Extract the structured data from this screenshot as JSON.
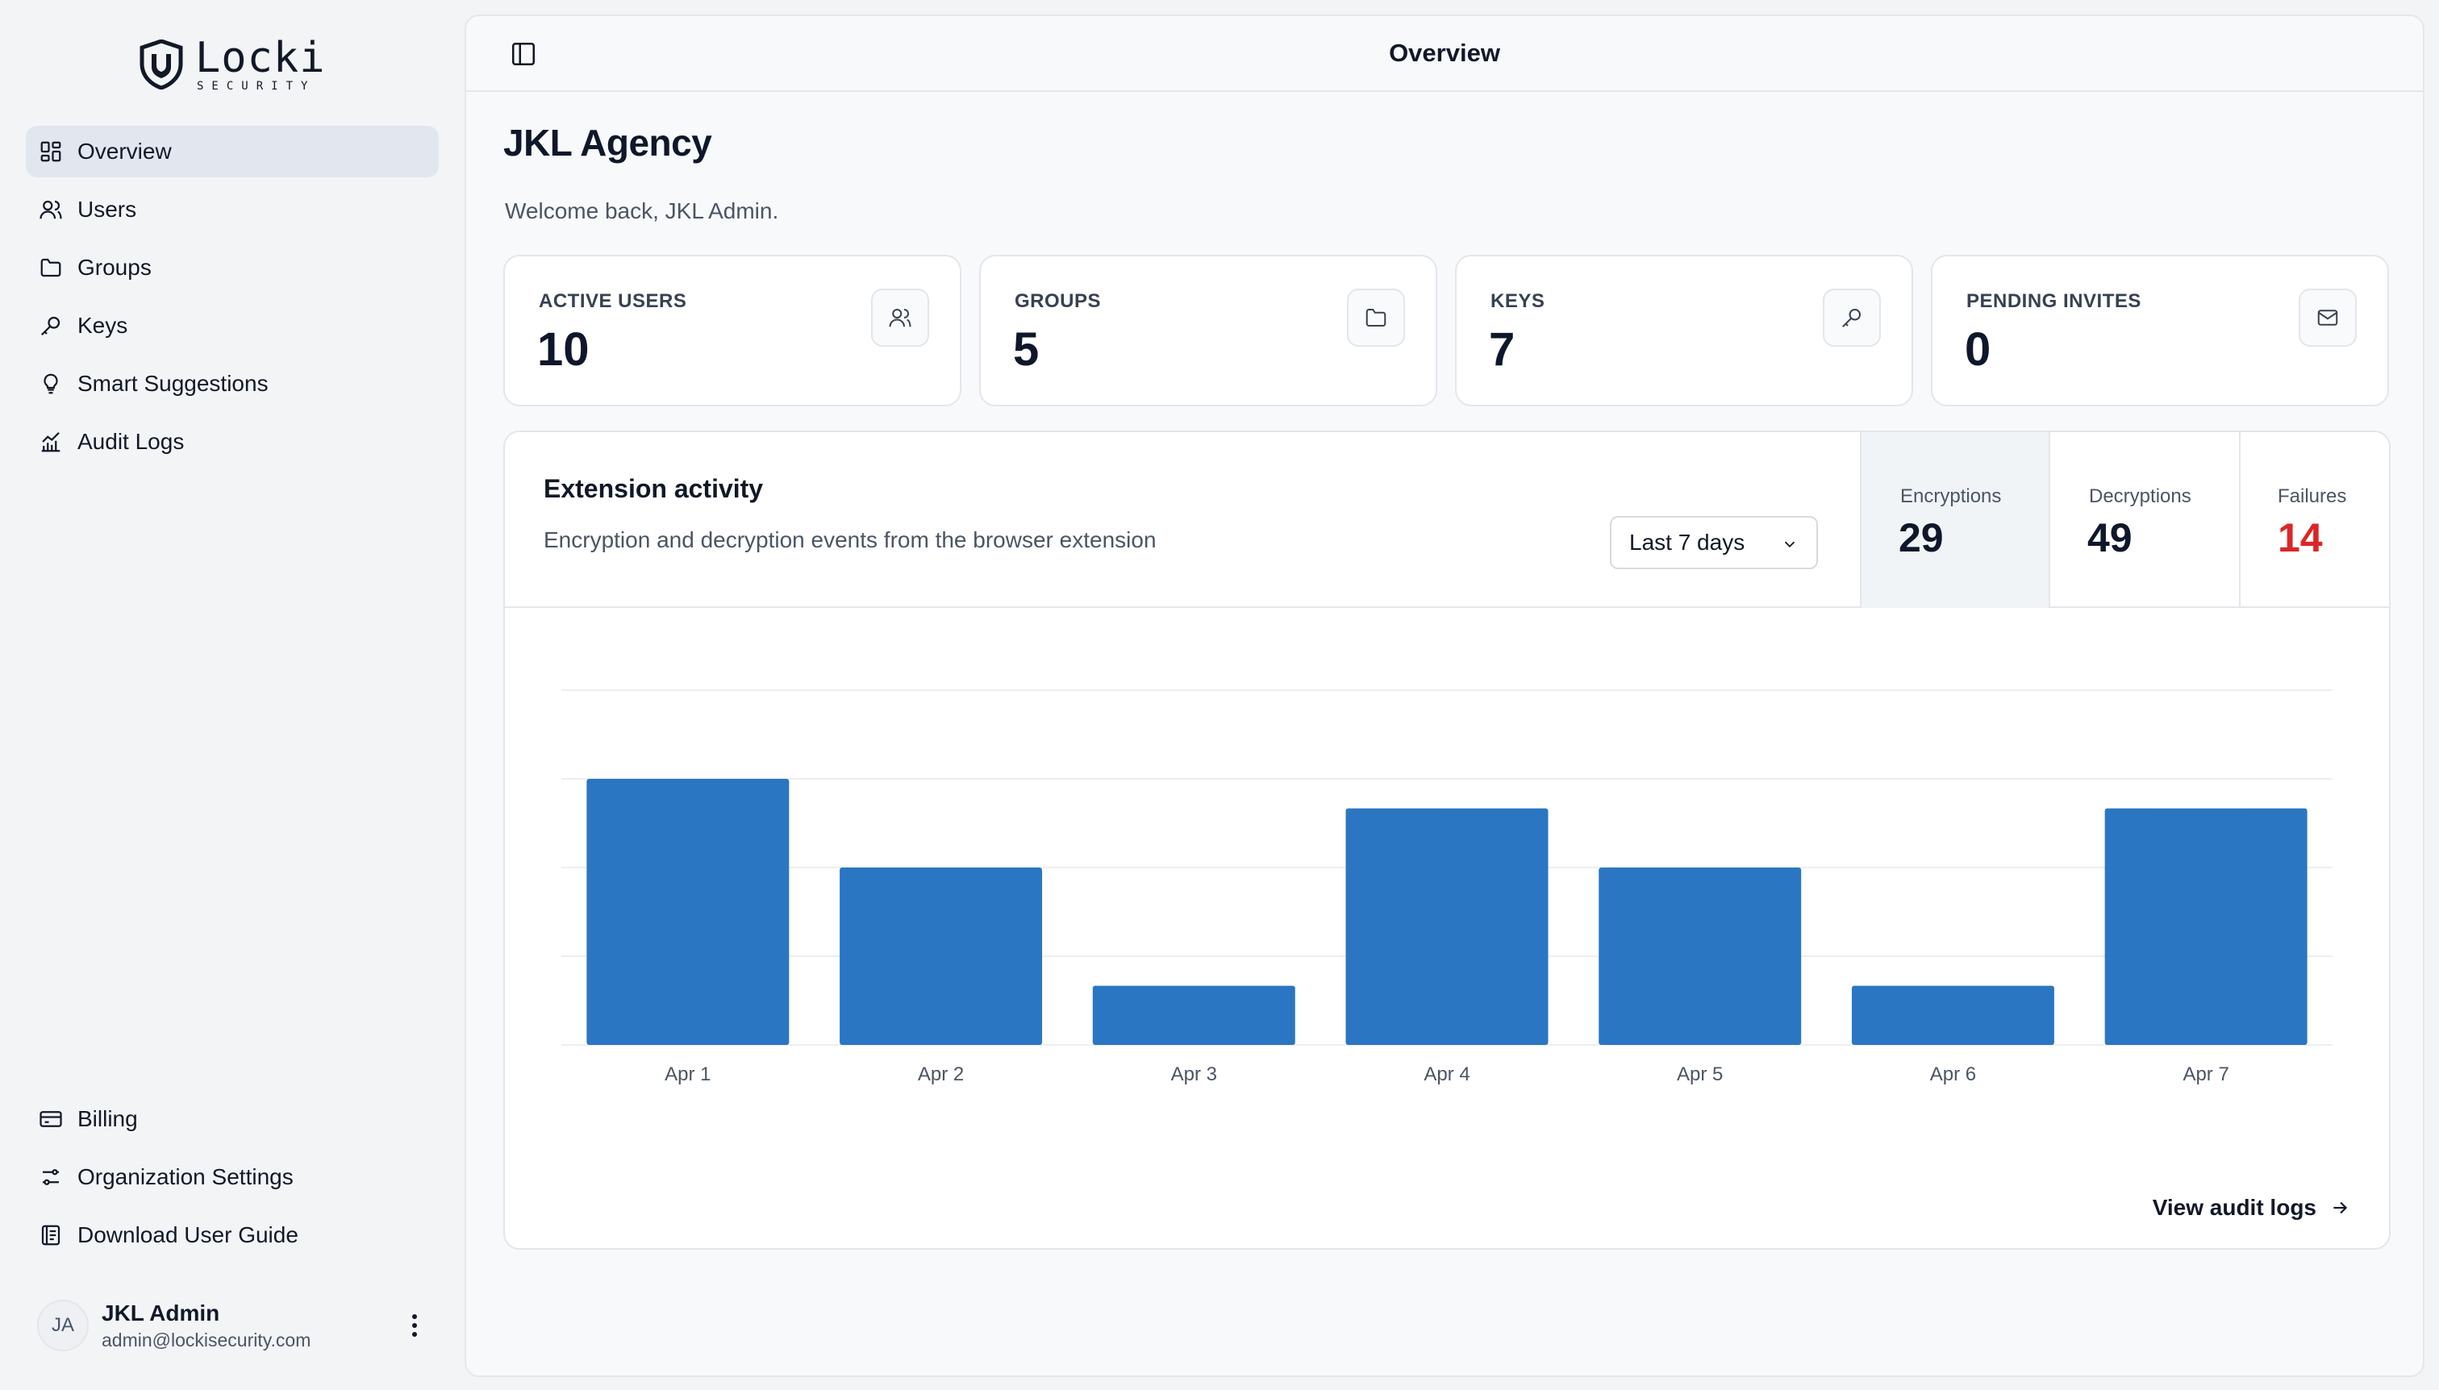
{
  "brand": {
    "name": "Locki",
    "tagline": "SECURITY"
  },
  "sidebar": {
    "items": [
      {
        "label": "Overview",
        "icon": "dashboard-icon",
        "active": true
      },
      {
        "label": "Users",
        "icon": "users-icon"
      },
      {
        "label": "Groups",
        "icon": "folder-icon"
      },
      {
        "label": "Keys",
        "icon": "key-icon"
      },
      {
        "label": "Smart Suggestions",
        "icon": "lightbulb-icon"
      },
      {
        "label": "Audit Logs",
        "icon": "chart-icon"
      }
    ],
    "bottom_items": [
      {
        "label": "Billing",
        "icon": "credit-card-icon"
      },
      {
        "label": "Organization Settings",
        "icon": "settings-sliders-icon"
      },
      {
        "label": "Download User Guide",
        "icon": "book-icon"
      }
    ],
    "user": {
      "initials": "JA",
      "name": "JKL Admin",
      "email": "admin@lockisecurity.com"
    }
  },
  "header": {
    "title": "Overview"
  },
  "main": {
    "org_name": "JKL Agency",
    "welcome": "Welcome back, JKL Admin.",
    "stats": [
      {
        "label": "ACTIVE USERS",
        "value": "10",
        "icon": "users-icon"
      },
      {
        "label": "GROUPS",
        "value": "5",
        "icon": "folder-icon"
      },
      {
        "label": "KEYS",
        "value": "7",
        "icon": "key-icon"
      },
      {
        "label": "PENDING INVITES",
        "value": "0",
        "icon": "mail-icon"
      }
    ]
  },
  "activity": {
    "title": "Extension activity",
    "description": "Encryption and decryption events from the browser extension",
    "range": "Last 7 days",
    "metrics": [
      {
        "label": "Encryptions",
        "value": "29",
        "color": "#0f172a"
      },
      {
        "label": "Decryptions",
        "value": "49",
        "color": "#0f172a"
      },
      {
        "label": "Failures",
        "value": "14",
        "color": "#dc2626"
      }
    ],
    "link": "View audit logs"
  },
  "chart_data": {
    "type": "bar",
    "categories": [
      "Apr 1",
      "Apr 2",
      "Apr 3",
      "Apr 4",
      "Apr 5",
      "Apr 6",
      "Apr 7"
    ],
    "values": [
      18,
      12,
      4,
      16,
      12,
      4,
      16
    ],
    "ylim": [
      0,
      24
    ],
    "grid": true,
    "bar_color": "#2b76c2"
  }
}
